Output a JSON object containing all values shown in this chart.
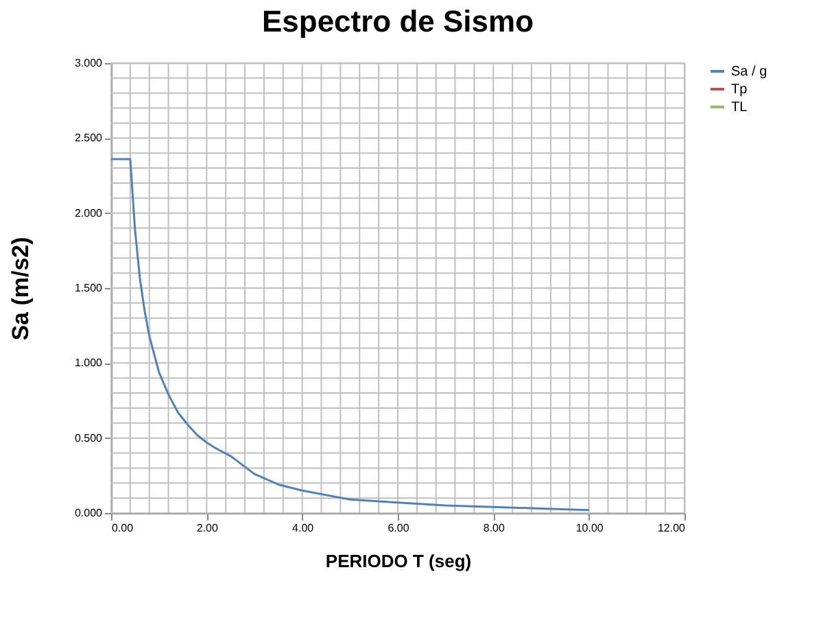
{
  "chart_data": {
    "type": "line",
    "title": "Espectro de Sismo",
    "xlabel": "PERIODO  T (seg)",
    "ylabel": "Sa (m/s2)",
    "xlim": [
      0,
      12
    ],
    "ylim": [
      0,
      3
    ],
    "xticks": [
      {
        "value": 0,
        "label": "0.00"
      },
      {
        "value": 2,
        "label": "2.00"
      },
      {
        "value": 4,
        "label": "4.00"
      },
      {
        "value": 6,
        "label": "6.00"
      },
      {
        "value": 8,
        "label": "8.00"
      },
      {
        "value": 10,
        "label": "10.00"
      },
      {
        "value": 12,
        "label": "12.00"
      }
    ],
    "yticks": [
      {
        "value": 0,
        "label": "0.000"
      },
      {
        "value": 0.5,
        "label": "0.500"
      },
      {
        "value": 1,
        "label": "1.000"
      },
      {
        "value": 1.5,
        "label": "1.500"
      },
      {
        "value": 2,
        "label": "2.000"
      },
      {
        "value": 2.5,
        "label": "2.500"
      },
      {
        "value": 3,
        "label": "3.000"
      }
    ],
    "grid": true,
    "legend": "right",
    "marker": "none",
    "line_style": "solid",
    "series": [
      {
        "name": "Sa / g",
        "color": "#4f81bd",
        "x": [
          0,
          0.4,
          0.5,
          0.6,
          0.7,
          0.8,
          1.0,
          1.2,
          1.4,
          1.6,
          1.8,
          2.0,
          2.2,
          2.5,
          3,
          3.5,
          4,
          5,
          6,
          7,
          8,
          9,
          10
        ],
        "values": [
          2.36,
          2.36,
          1.89,
          1.57,
          1.35,
          1.18,
          0.94,
          0.79,
          0.67,
          0.59,
          0.52,
          0.47,
          0.43,
          0.38,
          0.26,
          0.19,
          0.15,
          0.09,
          0.07,
          0.05,
          0.04,
          0.03,
          0.02
        ]
      },
      {
        "name": "Tp",
        "color": "#c0504d"
      },
      {
        "name": "TL",
        "color": "#9bbb59"
      }
    ]
  }
}
